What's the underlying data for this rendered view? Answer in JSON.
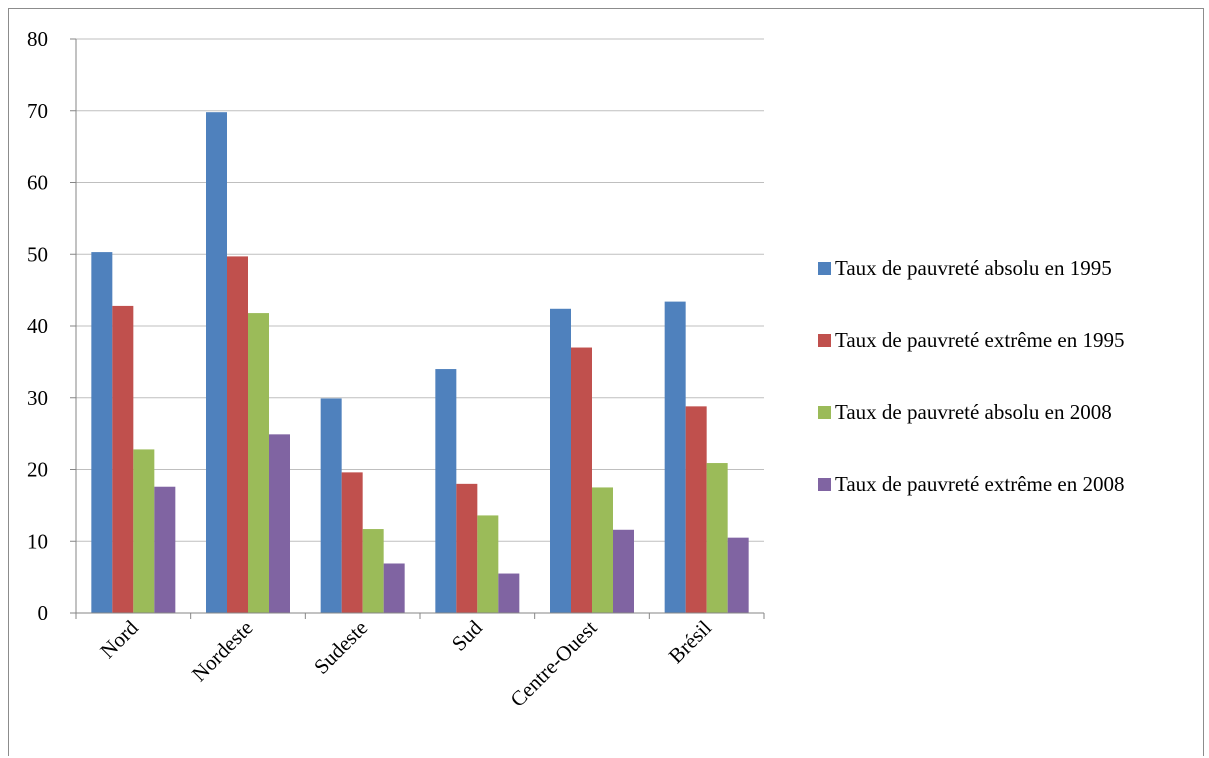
{
  "chart_data": {
    "type": "bar",
    "categories": [
      "Nord",
      "Nordeste",
      "Sudeste",
      "Sud",
      "Centre-Ouest",
      "Brésil"
    ],
    "series": [
      {
        "name": "Taux de pauvreté absolu en 1995",
        "color": "#4f81bd",
        "values": [
          50.3,
          69.8,
          29.9,
          34.0,
          42.4,
          43.4
        ]
      },
      {
        "name": "Taux de pauvreté extrême en 1995",
        "color": "#c0504d",
        "values": [
          42.8,
          49.7,
          19.6,
          18.0,
          37.0,
          28.8
        ]
      },
      {
        "name": "Taux de pauvreté absolu en 2008",
        "color": "#9bbb59",
        "values": [
          22.8,
          41.8,
          11.7,
          13.6,
          17.5,
          20.9
        ]
      },
      {
        "name": "Taux de pauvreté extrême en 2008",
        "color": "#8064a2",
        "values": [
          17.6,
          24.9,
          6.9,
          5.5,
          11.6,
          10.5
        ]
      }
    ],
    "yticks": [
      "0",
      "10",
      "20",
      "30",
      "40",
      "50",
      "60",
      "70",
      "80"
    ],
    "ylim": [
      0,
      80
    ],
    "grid": true,
    "legend_position": "right",
    "title": "",
    "xlabel": "",
    "ylabel": ""
  }
}
